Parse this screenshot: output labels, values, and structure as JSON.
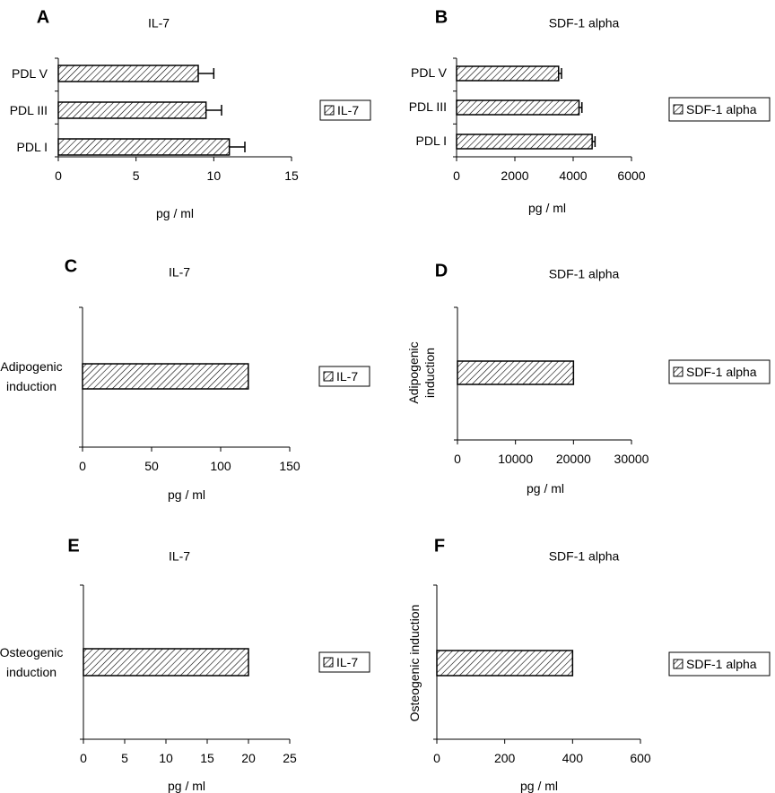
{
  "chart_data": [
    {
      "panel": "A",
      "type": "bar",
      "orientation": "horizontal",
      "title": "IL-7",
      "xlabel": "pg / ml",
      "ylabel": "",
      "categories": [
        "PDL V",
        "PDL III",
        "PDL I"
      ],
      "series": [
        {
          "name": "IL-7",
          "values": [
            9,
            9.5,
            11
          ],
          "errors": [
            1,
            1,
            1
          ]
        }
      ],
      "xlim": [
        0,
        15
      ],
      "xticks": [
        "0",
        "5",
        "10",
        "15"
      ],
      "legend": {
        "label": "IL-7",
        "position": "right"
      }
    },
    {
      "panel": "B",
      "type": "bar",
      "orientation": "horizontal",
      "title": "SDF-1 alpha",
      "xlabel": "pg / ml",
      "ylabel": "",
      "categories": [
        "PDL V",
        "PDL III",
        "PDL I"
      ],
      "series": [
        {
          "name": "SDF-1 alpha",
          "values": [
            3500,
            4200,
            4650
          ],
          "errors": [
            100,
            100,
            100
          ]
        }
      ],
      "xlim": [
        0,
        6000
      ],
      "xticks": [
        "0",
        "2000",
        "4000",
        "6000"
      ],
      "legend": {
        "label": "SDF-1 alpha",
        "position": "right"
      }
    },
    {
      "panel": "C",
      "type": "bar",
      "orientation": "horizontal",
      "title": "IL-7",
      "xlabel": "pg / ml",
      "ylabel": "",
      "categories": [
        "Adipogenic induction"
      ],
      "series": [
        {
          "name": "IL-7",
          "values": [
            120
          ]
        }
      ],
      "xlim": [
        0,
        150
      ],
      "xticks": [
        "0",
        "50",
        "100",
        "150"
      ],
      "legend": {
        "label": "IL-7",
        "position": "right"
      }
    },
    {
      "panel": "D",
      "type": "bar",
      "orientation": "horizontal",
      "title": "SDF-1 alpha",
      "xlabel": "pg / ml",
      "ylabel": "",
      "categories": [
        "Adipogenic induction"
      ],
      "series": [
        {
          "name": "SDF-1 alpha",
          "values": [
            20000
          ]
        }
      ],
      "xlim": [
        0,
        30000
      ],
      "xticks": [
        "0",
        "10000",
        "20000",
        "30000"
      ],
      "legend": {
        "label": "SDF-1 alpha",
        "position": "right"
      }
    },
    {
      "panel": "E",
      "type": "bar",
      "orientation": "horizontal",
      "title": "IL-7",
      "xlabel": "pg / ml",
      "ylabel": "",
      "categories": [
        "Osteogenic induction"
      ],
      "series": [
        {
          "name": "IL-7",
          "values": [
            20
          ]
        }
      ],
      "xlim": [
        0,
        25
      ],
      "xticks": [
        "0",
        "5",
        "10",
        "15",
        "20",
        "25"
      ],
      "legend": {
        "label": "IL-7",
        "position": "right"
      }
    },
    {
      "panel": "F",
      "type": "bar",
      "orientation": "horizontal",
      "title": "SDF-1 alpha",
      "xlabel": "pg / ml",
      "ylabel": "",
      "categories": [
        "Osteogenic induction"
      ],
      "series": [
        {
          "name": "SDF-1 alpha",
          "values": [
            400
          ]
        }
      ],
      "xlim": [
        0,
        600
      ],
      "xticks": [
        "0",
        "200",
        "400",
        "600"
      ],
      "legend": {
        "label": "SDF-1 alpha",
        "position": "right"
      }
    }
  ]
}
